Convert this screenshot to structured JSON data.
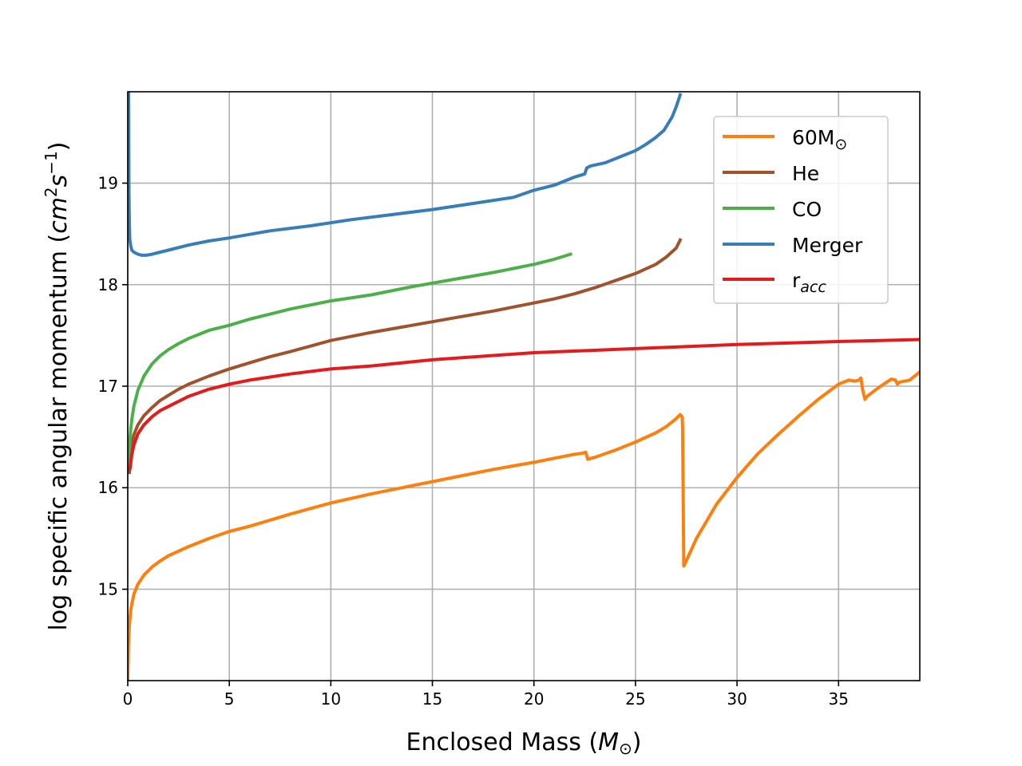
{
  "chart_data": {
    "type": "line",
    "title": "",
    "xlabel": "Enclosed Mass",
    "xlabel_unit": "M",
    "xlabel_unit_sub": "⊙",
    "ylabel": "log specific angular momentum",
    "ylabel_unit": "cm",
    "ylabel_unit_sup": "2",
    "ylabel_unit2": "s",
    "ylabel_unit2_sup": "−1",
    "xlim": [
      0,
      39
    ],
    "ylim": [
      14.1,
      19.9
    ],
    "x_ticks": [
      0,
      5,
      10,
      15,
      20,
      25,
      30,
      35
    ],
    "y_ticks": [
      15,
      16,
      17,
      18,
      19
    ],
    "grid": true,
    "legend_position": "upper-right",
    "series": [
      {
        "key": "sixty",
        "name": "60M",
        "name_sub": "⊙",
        "color": "#ff7f0e",
        "x": [
          0.0,
          0.03,
          0.08,
          0.15,
          0.3,
          0.5,
          0.8,
          1.2,
          1.6,
          2.0,
          3.0,
          4.0,
          5.0,
          6.0,
          8.0,
          10.0,
          12.0,
          14.0,
          16.0,
          18.0,
          20.0,
          21.0,
          22.0,
          22.4,
          22.55,
          22.65,
          23.0,
          24.0,
          25.0,
          26.0,
          26.5,
          27.0,
          27.2,
          27.3,
          27.32,
          27.38,
          27.5,
          28.0,
          29.0,
          30.0,
          31.0,
          32.0,
          33.0,
          34.0,
          35.0,
          35.5,
          35.8,
          36.0,
          36.1,
          36.2,
          36.3,
          36.4,
          37.0,
          37.6,
          37.8,
          37.9,
          38.0,
          38.5,
          39.0
        ],
        "y": [
          14.1,
          14.45,
          14.65,
          14.8,
          14.95,
          15.05,
          15.14,
          15.22,
          15.28,
          15.33,
          15.42,
          15.5,
          15.57,
          15.62,
          15.74,
          15.85,
          15.94,
          16.02,
          16.1,
          16.18,
          16.25,
          16.29,
          16.33,
          16.34,
          16.35,
          16.28,
          16.3,
          16.37,
          16.45,
          16.54,
          16.6,
          16.68,
          16.72,
          16.7,
          16.6,
          15.23,
          15.28,
          15.5,
          15.84,
          16.1,
          16.33,
          16.52,
          16.7,
          16.87,
          17.02,
          17.06,
          17.05,
          17.06,
          17.08,
          16.95,
          16.87,
          16.9,
          16.99,
          17.07,
          17.06,
          17.02,
          17.04,
          17.06,
          17.14
        ]
      },
      {
        "key": "he",
        "name": "He",
        "color": "#a0522d",
        "x": [
          0.08,
          0.1,
          0.15,
          0.3,
          0.5,
          0.8,
          1.2,
          1.6,
          2.0,
          2.5,
          3.0,
          4.0,
          5.0,
          6.0,
          7.0,
          8.0,
          10.0,
          12.0,
          14.0,
          16.0,
          18.0,
          20.0,
          21.0,
          22.0,
          23.0,
          24.0,
          25.0,
          26.0,
          26.5,
          27.0,
          27.2
        ],
        "y": [
          16.15,
          16.28,
          16.38,
          16.52,
          16.62,
          16.71,
          16.79,
          16.86,
          16.91,
          16.97,
          17.02,
          17.1,
          17.17,
          17.23,
          17.29,
          17.34,
          17.45,
          17.53,
          17.6,
          17.67,
          17.74,
          17.82,
          17.86,
          17.91,
          17.97,
          18.04,
          18.11,
          18.2,
          18.27,
          18.36,
          18.44
        ]
      },
      {
        "key": "co",
        "name": "CO",
        "color": "#4daf4a",
        "x": [
          0.05,
          0.08,
          0.1,
          0.15,
          0.2,
          0.3,
          0.5,
          0.8,
          1.2,
          1.6,
          2.0,
          2.5,
          3.0,
          4.0,
          5.0,
          6.0,
          7.0,
          8.0,
          10.0,
          12.0,
          14.0,
          16.0,
          18.0,
          20.0,
          21.0,
          21.8
        ],
        "y": [
          16.2,
          16.35,
          16.45,
          16.58,
          16.67,
          16.8,
          16.96,
          17.1,
          17.22,
          17.3,
          17.36,
          17.42,
          17.47,
          17.55,
          17.6,
          17.66,
          17.71,
          17.76,
          17.84,
          17.9,
          17.98,
          18.05,
          18.12,
          18.2,
          18.25,
          18.3
        ]
      },
      {
        "key": "merger",
        "name": "Merger",
        "color": "#377eb8",
        "x": [
          0.04,
          0.06,
          0.08,
          0.1,
          0.15,
          0.2,
          0.3,
          0.5,
          0.7,
          0.9,
          1.2,
          1.6,
          2.0,
          3.0,
          4.0,
          5.0,
          7.0,
          9.0,
          11.0,
          13.0,
          15.0,
          17.0,
          19.0,
          20.0,
          21.0,
          22.0,
          22.5,
          22.6,
          22.8,
          23.5,
          24.5,
          25.0,
          25.5,
          26.0,
          26.4,
          26.8,
          27.0,
          27.2
        ],
        "y": [
          19.9,
          18.9,
          18.6,
          18.45,
          18.38,
          18.34,
          18.32,
          18.3,
          18.29,
          18.29,
          18.3,
          18.32,
          18.34,
          18.39,
          18.43,
          18.46,
          18.53,
          18.58,
          18.64,
          18.69,
          18.74,
          18.8,
          18.86,
          18.93,
          18.98,
          19.06,
          19.09,
          19.15,
          19.17,
          19.2,
          19.28,
          19.32,
          19.38,
          19.45,
          19.52,
          19.65,
          19.75,
          19.87
        ]
      },
      {
        "key": "racc",
        "name": "r",
        "name_sub": "acc",
        "color": "#e41a1c",
        "x": [
          0.1,
          0.12,
          0.2,
          0.3,
          0.5,
          0.8,
          1.2,
          1.6,
          2.0,
          3.0,
          4.0,
          5.0,
          6.0,
          8.0,
          10.0,
          12.0,
          15.0,
          20.0,
          25.0,
          30.0,
          35.0,
          39.0
        ],
        "y": [
          16.18,
          16.2,
          16.33,
          16.42,
          16.53,
          16.62,
          16.7,
          16.76,
          16.8,
          16.9,
          16.97,
          17.02,
          17.06,
          17.12,
          17.17,
          17.2,
          17.26,
          17.33,
          17.37,
          17.41,
          17.44,
          17.46
        ]
      }
    ]
  }
}
